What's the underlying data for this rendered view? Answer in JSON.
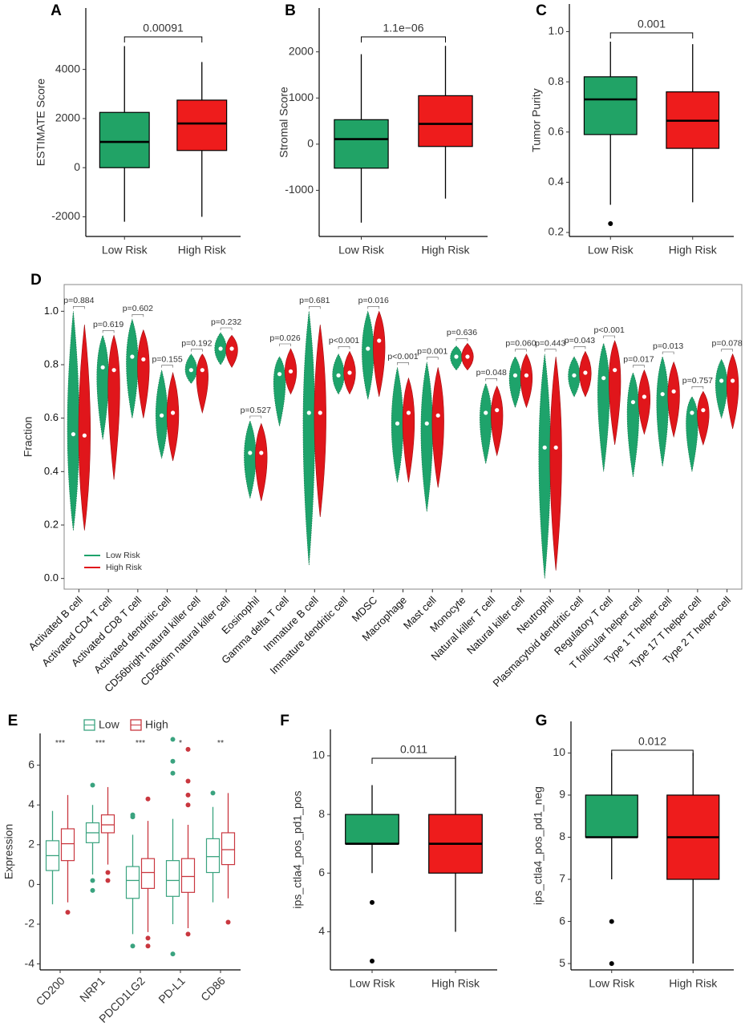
{
  "chart_data": [
    {
      "type": "box",
      "label": "A",
      "ylabel": "ESTIMATE Score",
      "categories": [
        "Low Risk",
        "High Risk"
      ],
      "colors": [
        "#21a366",
        "#ee1c1c"
      ],
      "min": [
        -2200,
        -2000
      ],
      "q1": [
        0,
        700
      ],
      "median": [
        1050,
        1800
      ],
      "q3": [
        2250,
        2750
      ],
      "max": [
        4950,
        4300
      ],
      "outliers": [
        [],
        []
      ],
      "pvalue": "0.00091",
      "ylim": [
        -2800,
        6500
      ],
      "yticks": [
        -2000,
        0,
        2000,
        4000
      ]
    },
    {
      "type": "box",
      "label": "B",
      "ylabel": "Stromal Score",
      "categories": [
        "Low Risk",
        "High Risk"
      ],
      "colors": [
        "#21a366",
        "#ee1c1c"
      ],
      "min": [
        -1700,
        -1180
      ],
      "q1": [
        -520,
        -50
      ],
      "median": [
        110,
        440
      ],
      "q3": [
        530,
        1050
      ],
      "max": [
        1950,
        2130
      ],
      "outliers": [
        [],
        []
      ],
      "pvalue": "1.1e−06",
      "ylim": [
        -2000,
        2950
      ],
      "yticks": [
        -1000,
        0,
        1000,
        2000
      ]
    },
    {
      "type": "box",
      "label": "C",
      "ylabel": "Tumor Purity",
      "categories": [
        "Low Risk",
        "High Risk"
      ],
      "colors": [
        "#21a366",
        "#ee1c1c"
      ],
      "min": [
        0.31,
        0.32
      ],
      "q1": [
        0.59,
        0.535
      ],
      "median": [
        0.73,
        0.645
      ],
      "q3": [
        0.82,
        0.76
      ],
      "max": [
        0.96,
        0.95
      ],
      "outliers": [
        [
          0.235
        ],
        []
      ],
      "pvalue": "0.001",
      "ylim": [
        0.184,
        1.11
      ],
      "yticks": [
        0.2,
        0.4,
        0.6,
        0.8,
        {
          "value": 1,
          "label": "1.0"
        }
      ]
    },
    {
      "type": "violin",
      "label": "D",
      "ylabel": "Fraction",
      "legend": "bottom-left",
      "categories": [
        "Activated B cell",
        "Activated CD4 T cell",
        "Activated CD8 T cell",
        "Activated dendritic cell",
        "CD56bright natural killer cell",
        "CD56dim natural killer cell",
        "Eosinophil",
        "Gamma delta T cell",
        "Immature  B cell",
        "Immature dendritic cell",
        "MDSC",
        "Macrophage",
        "Mast cell",
        "Monocyte",
        "Natural killer T cell",
        "Natural killer cell",
        "Neutrophil",
        "Plasmacytoid dendritic cell",
        "Regulatory T cell",
        "T follicular helper cell",
        "Type 1 T helper cell",
        "Type 17 T helper cell",
        "Type 2 T helper cell"
      ],
      "pvalues": [
        "p=0.884",
        "p=0.619",
        "p=0.602",
        "p=0.155",
        "p=0.192",
        "p=0.232",
        "p=0.527",
        "p=0.026",
        "p=0.681",
        "p<0.001",
        "p=0.016",
        "p<0.001",
        "p=0.001",
        "p=0.636",
        "p=0.048",
        "p=0.060",
        "p=0.443",
        "p=0.043",
        "p<0.001",
        "p=0.017",
        "p=0.013",
        "p=0.757",
        "p=0.078"
      ],
      "series": [
        {
          "name": "Low Risk",
          "color": "#1ea36b",
          "values": [
            0.54,
            0.79,
            0.83,
            0.61,
            0.78,
            0.86,
            0.47,
            0.765,
            0.62,
            0.76,
            0.86,
            0.58,
            0.58,
            0.83,
            0.62,
            0.76,
            0.49,
            0.76,
            0.75,
            0.66,
            0.69,
            0.62,
            0.74
          ],
          "min": [
            0.18,
            0.52,
            0.6,
            0.45,
            0.73,
            0.8,
            0.3,
            0.57,
            0.05,
            0.69,
            0.67,
            0.36,
            0.25,
            0.78,
            0.43,
            0.64,
            0.0,
            0.68,
            0.4,
            0.38,
            0.42,
            0.4,
            0.6
          ],
          "max": [
            1.0,
            0.91,
            0.97,
            0.78,
            0.84,
            0.92,
            0.59,
            0.83,
            1.0,
            0.84,
            1.0,
            0.79,
            0.81,
            0.87,
            0.73,
            0.83,
            0.84,
            0.83,
            0.88,
            0.77,
            0.83,
            0.68,
            0.82
          ]
        },
        {
          "name": "High Risk",
          "color": "#e0161b",
          "values": [
            0.535,
            0.78,
            0.82,
            0.62,
            0.78,
            0.86,
            0.47,
            0.775,
            0.62,
            0.77,
            0.89,
            0.62,
            0.61,
            0.83,
            0.63,
            0.76,
            0.49,
            0.77,
            0.78,
            0.68,
            0.7,
            0.63,
            0.74
          ],
          "min": [
            0.18,
            0.37,
            0.6,
            0.44,
            0.62,
            0.79,
            0.29,
            0.69,
            0.23,
            0.69,
            0.68,
            0.36,
            0.34,
            0.78,
            0.46,
            0.64,
            0.03,
            0.68,
            0.5,
            0.54,
            0.53,
            0.5,
            0.56
          ],
          "max": [
            0.95,
            0.91,
            0.93,
            0.77,
            0.84,
            0.91,
            0.58,
            0.86,
            0.95,
            0.85,
            1.0,
            0.75,
            0.79,
            0.88,
            0.72,
            0.84,
            0.83,
            0.85,
            0.89,
            0.78,
            0.81,
            0.7,
            0.84
          ]
        }
      ],
      "ylim": [
        -0.04,
        1.1
      ],
      "yticks": [
        {
          "value": 0,
          "label": "0.0"
        },
        0.2,
        0.4,
        0.6,
        0.8,
        {
          "value": 1,
          "label": "1.0"
        }
      ]
    },
    {
      "type": "box",
      "label": "E",
      "ylabel": "Expression",
      "legend": "top",
      "categories": [
        "CD200",
        "NRP1",
        "PDCD1LG2",
        "PD-L1",
        "CD86"
      ],
      "significance": [
        "***",
        "***",
        "***",
        "*",
        "**"
      ],
      "series": [
        {
          "name": "Low",
          "color": "#3aa37f",
          "min": [
            -1.0,
            0.5,
            -2.5,
            -2.0,
            -0.9
          ],
          "q1": [
            0.7,
            2.1,
            -0.7,
            -0.6,
            0.6
          ],
          "median": [
            1.45,
            2.6,
            0.2,
            0.2,
            1.4
          ],
          "q3": [
            2.2,
            3.1,
            0.9,
            1.2,
            2.3
          ],
          "max": [
            3.7,
            4.0,
            2.5,
            3.3,
            3.9
          ],
          "outliers": [
            [],
            [
              5.0,
              0.2,
              -0.3
            ],
            [
              3.5,
              3.4,
              -3.1
            ],
            [
              7.3,
              6.2,
              5.6,
              -3.5
            ],
            [
              4.6
            ]
          ]
        },
        {
          "name": "High",
          "color": "#c9373f",
          "min": [
            -0.9,
            1.0,
            -2.4,
            -2.2,
            -0.7
          ],
          "q1": [
            1.2,
            2.6,
            -0.2,
            -0.4,
            1.0
          ],
          "median": [
            2.05,
            3.0,
            0.6,
            0.4,
            1.75
          ],
          "q3": [
            2.8,
            3.5,
            1.3,
            1.3,
            2.6
          ],
          "max": [
            4.5,
            4.9,
            3.2,
            3.0,
            4.6
          ],
          "outliers": [
            [
              -1.4
            ],
            [
              0.6,
              0.2
            ],
            [
              4.3,
              -2.7,
              -3.1
            ],
            [
              6.8,
              5.2,
              4.5,
              4.0,
              -2.5
            ],
            [
              -1.9
            ]
          ]
        }
      ],
      "ylim": [
        -4.3,
        7.6
      ],
      "yticks": [
        -4,
        -2,
        0,
        2,
        4,
        6
      ]
    },
    {
      "type": "box",
      "label": "F",
      "ylabel": "ips_ctla4_pos_pd1_pos",
      "categories": [
        "Low Risk",
        "High Risk"
      ],
      "colors": [
        "#21a366",
        "#ee1c1c"
      ],
      "min": [
        6,
        4
      ],
      "q1": [
        7,
        6
      ],
      "median": [
        7,
        7
      ],
      "q3": [
        8,
        8
      ],
      "max": [
        9,
        10
      ],
      "outliers": [
        [
          5,
          3
        ],
        []
      ],
      "pvalue": "0.011",
      "ylim": [
        2.7,
        10.9
      ],
      "yticks": [
        4,
        6,
        8,
        10
      ]
    },
    {
      "type": "box",
      "label": "G",
      "ylabel": "ips_ctla4_pos_pd1_neg",
      "categories": [
        "Low Risk",
        "High Risk"
      ],
      "colors": [
        "#21a366",
        "#ee1c1c"
      ],
      "min": [
        7,
        5
      ],
      "q1": [
        8,
        7
      ],
      "median": [
        8,
        8
      ],
      "q3": [
        9,
        9
      ],
      "max": [
        10,
        10
      ],
      "outliers": [
        [
          6,
          5
        ],
        []
      ],
      "pvalue": "0.012",
      "ylim": [
        4.85,
        10.75
      ],
      "yticks": [
        5,
        6,
        7,
        8,
        9,
        10
      ]
    }
  ]
}
